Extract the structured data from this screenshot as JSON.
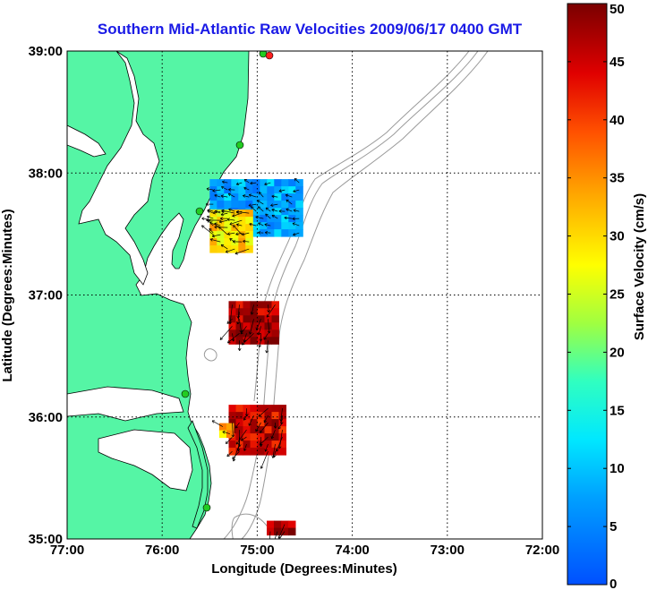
{
  "chart_data": {
    "type": "heatmap",
    "title": "Southern Mid-Atlantic Raw Velocities 2009/06/17 0400 GMT",
    "xlabel": "Longitude (Degrees:Minutes)",
    "ylabel": "Latitude (Degrees:Minutes)",
    "x_ticks": [
      "77:00",
      "76:00",
      "75:00",
      "74:00",
      "73:00",
      "72:00"
    ],
    "y_ticks": [
      "39:00",
      "38:00",
      "37:00",
      "36:00",
      "35:00"
    ],
    "xlim": [
      -77,
      -72
    ],
    "ylim": [
      35,
      39
    ],
    "grid": true,
    "colorbar": {
      "label": "Surface Velocity (cm/s)",
      "range": [
        0,
        50
      ],
      "ticks": [
        "0",
        "5",
        "10",
        "15",
        "20",
        "25",
        "30",
        "35",
        "40",
        "45",
        "50"
      ]
    },
    "regions": [
      {
        "lon": [
          -75.5,
          -74.55
        ],
        "lat": [
          37.5,
          37.95
        ],
        "velocity": 8
      },
      {
        "lon": [
          -75.5,
          -75.1
        ],
        "lat": [
          37.35,
          37.7
        ],
        "velocity": 30
      },
      {
        "lon": [
          -75.3,
          -74.8
        ],
        "lat": [
          36.6,
          36.95
        ],
        "velocity": 47
      },
      {
        "lon": [
          -75.3,
          -74.7
        ],
        "lat": [
          35.7,
          36.1
        ],
        "velocity": 45
      },
      {
        "lon": [
          -75.4,
          -75.25
        ],
        "lat": [
          35.85,
          35.95
        ],
        "velocity": 32
      },
      {
        "lon": [
          -74.9,
          -74.6
        ],
        "lat": [
          35.08,
          35.15
        ],
        "velocity": 48
      }
    ]
  },
  "colors": {
    "land": "#55f5a5",
    "title": "#1a1ae6",
    "station": "#22cc22",
    "station_alert": "#ff2020",
    "vector": "#000000",
    "bathymetry": "#9a9a9a"
  }
}
